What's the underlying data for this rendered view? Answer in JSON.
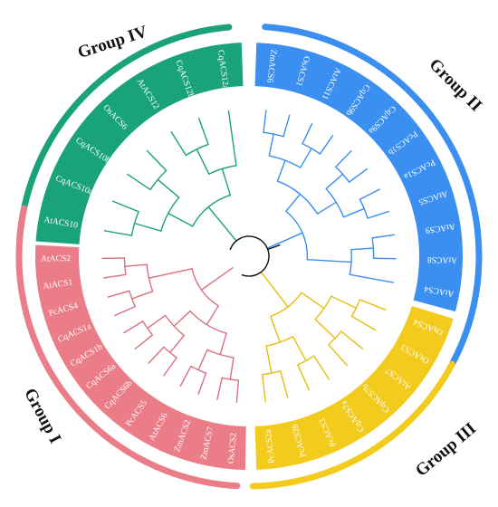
{
  "groups": [
    {
      "id": "group-iv",
      "label": "Group IV",
      "color": "#1aa37a",
      "leaves": [
        "AtACS10",
        "CqACS10a",
        "CqACS10b",
        "OsACS6",
        "AtACS12",
        "CqACS12b",
        "CqACS12a"
      ]
    },
    {
      "id": "group-ii",
      "label": "Group II",
      "color": "#3b8ff0",
      "leaves": [
        "ZmACS6",
        "OsACS1",
        "AtACS11",
        "CqACS9b",
        "CqACS9a",
        "PcACS1b",
        "PcACS1a",
        "AtACS5",
        "AtACS9",
        "AtACS8",
        "AtACS4"
      ]
    },
    {
      "id": "group-iii",
      "label": "Group III",
      "color": "#f2cb1d",
      "leaves": [
        "OsACS4",
        "OsACS3",
        "AtACS7",
        "CqACS7b",
        "CqACS7a",
        "PcACS3",
        "PcACS2b",
        "PcACS2a"
      ]
    },
    {
      "id": "group-i",
      "label": "Group I",
      "color": "#ea7d88",
      "leaves": [
        "OsACS2",
        "ZmACS7",
        "ZmACS2",
        "AtACS6",
        "PcACS5",
        "CqACS6b",
        "CqACS6a",
        "CqACS1b",
        "CqACS1a",
        "PcACS4",
        "AtACS1",
        "AtACS2"
      ]
    }
  ],
  "branch_colors": {
    "group-i": "#d9717e",
    "group-ii": "#3b8ff0",
    "group-iii": "#e6bf12",
    "group-iv": "#1aa37a",
    "root": "#111111"
  }
}
